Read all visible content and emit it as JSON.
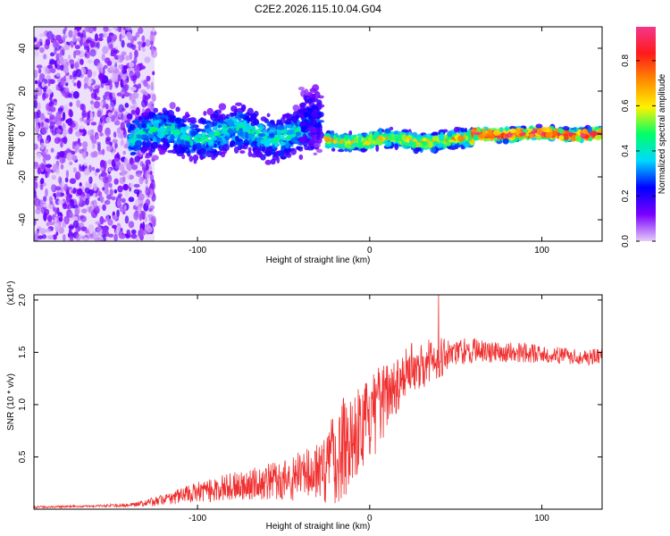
{
  "page": {
    "title": "C2E2.2026.115.10.04.G04"
  },
  "colors": {
    "snr_line": "#f03030",
    "background_wash": "#ece0fc",
    "colorbar_stops": [
      "#e6ccf7",
      "#7a00ff",
      "#0000ff",
      "#00d9ff",
      "#00ff66",
      "#fff200",
      "#ff8c00",
      "#ff1a1a",
      "#f4368c"
    ]
  },
  "chart_data": [
    {
      "type": "heatmap",
      "name": "spectrogram",
      "xlabel": "Height of straight line (km)",
      "ylabel": "Frequency (Hz)",
      "xlim": [
        -195,
        135
      ],
      "ylim": [
        -50,
        50
      ],
      "xticks": [
        -100,
        0,
        100
      ],
      "xtick_labels": [
        "-100",
        "0",
        "100"
      ],
      "yticks": [
        -40,
        -20,
        0,
        20,
        40
      ],
      "ytick_labels": [
        "-40",
        "-20",
        "0",
        "20",
        "40"
      ],
      "colorbar": {
        "label": "Normalized spectral amplitude",
        "range": [
          0,
          0.95
        ],
        "ticks": [
          0.0,
          0.2,
          0.4,
          0.6,
          0.8
        ],
        "tick_labels": [
          "0.0",
          "0.2",
          "0.4",
          "0.6",
          "0.8"
        ]
      },
      "regions": [
        {
          "x_range": [
            -195,
            -130
          ],
          "freq_range": [
            -50,
            50
          ],
          "amplitude": 0.1,
          "description": "scattered noise"
        },
        {
          "x_range": [
            -140,
            -30
          ],
          "center_freq": 0,
          "halfwidth": 8,
          "amplitude": 0.35
        },
        {
          "x_range": [
            -40,
            -28
          ],
          "center_freq": 4,
          "halfwidth": 12,
          "amplitude": 0.2
        },
        {
          "x_range": [
            -25,
            60
          ],
          "center_freq": -3,
          "halfwidth": 3,
          "amplitude": 0.55
        },
        {
          "x_range": [
            60,
            135
          ],
          "center_freq": 0,
          "halfwidth": 2,
          "amplitude": 0.8
        }
      ]
    },
    {
      "type": "line",
      "name": "snr",
      "xlabel": "Height of straight line (km)",
      "ylabel": "SNR (10 * v/v)",
      "multiplier_label": "(x10⁴)",
      "xlim": [
        -195,
        135
      ],
      "ylim": [
        0,
        2.05
      ],
      "xticks": [
        -100,
        0,
        100
      ],
      "xtick_labels": [
        "-100",
        "0",
        "100"
      ],
      "yticks": [
        0.5,
        1.0,
        1.5,
        2.0
      ],
      "ytick_labels": [
        "0.5",
        "1.0",
        "1.5",
        "2.0"
      ],
      "series": [
        {
          "name": "SNR",
          "x": [
            -195,
            -160,
            -140,
            -130,
            -120,
            -110,
            -100,
            -90,
            -80,
            -70,
            -60,
            -50,
            -40,
            -30,
            -25,
            -20,
            -15,
            -10,
            -5,
            0,
            5,
            10,
            15,
            20,
            25,
            30,
            40,
            50,
            60,
            70,
            80,
            90,
            100,
            110,
            120,
            135
          ],
          "mean": [
            0.02,
            0.03,
            0.04,
            0.06,
            0.09,
            0.13,
            0.16,
            0.19,
            0.22,
            0.24,
            0.26,
            0.28,
            0.32,
            0.38,
            0.42,
            0.5,
            0.62,
            0.72,
            0.78,
            0.85,
            0.95,
            1.1,
            1.2,
            1.3,
            1.35,
            1.4,
            1.45,
            1.5,
            1.52,
            1.5,
            1.5,
            1.5,
            1.48,
            1.47,
            1.46,
            1.45
          ],
          "spread": [
            0.01,
            0.01,
            0.02,
            0.03,
            0.05,
            0.08,
            0.1,
            0.12,
            0.13,
            0.15,
            0.17,
            0.2,
            0.25,
            0.3,
            0.38,
            0.45,
            0.55,
            0.45,
            0.4,
            0.4,
            0.4,
            0.35,
            0.3,
            0.25,
            0.25,
            0.25,
            0.2,
            0.15,
            0.12,
            0.1,
            0.1,
            0.1,
            0.08,
            0.08,
            0.08,
            0.08
          ],
          "peak": {
            "x": 40,
            "y": 2.05
          }
        }
      ]
    }
  ]
}
